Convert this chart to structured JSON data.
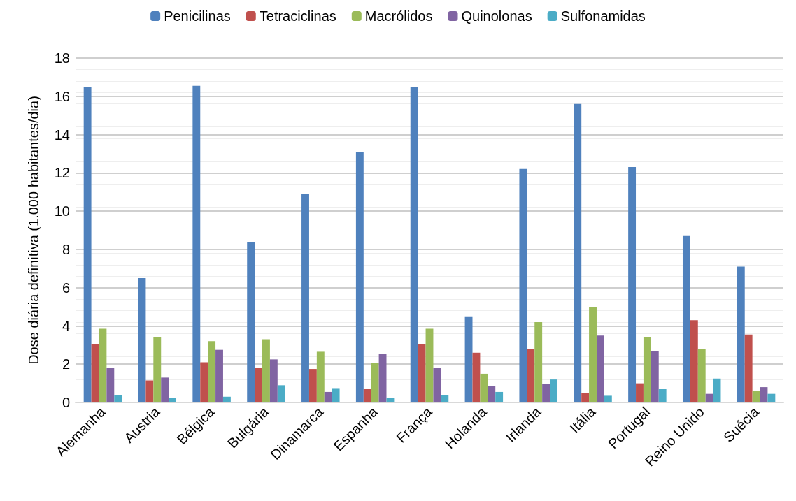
{
  "chart_data": {
    "type": "bar",
    "ylabel": "Dose diária definitiva (1.000 habitantes/dia)",
    "categories": [
      "Alemanha",
      "Austria",
      "Bélgica",
      "Bulgária",
      "Dinamarca",
      "Espanha",
      "França",
      "Holanda",
      "Irlanda",
      "Itália",
      "Portugal",
      "Reino Unido",
      "Suécia"
    ],
    "series": [
      {
        "name": "Penicilinas",
        "color": "#4f81bd",
        "values": [
          16.5,
          6.5,
          16.55,
          8.4,
          10.9,
          13.1,
          16.5,
          4.5,
          12.2,
          15.6,
          12.3,
          8.7,
          7.1
        ]
      },
      {
        "name": "Tetraciclinas",
        "color": "#c0504d",
        "values": [
          3.05,
          1.15,
          2.1,
          1.8,
          1.75,
          0.7,
          3.05,
          2.6,
          2.8,
          0.5,
          1.0,
          4.3,
          3.55
        ]
      },
      {
        "name": "Macrólidos",
        "color": "#9bbb59",
        "values": [
          3.85,
          3.4,
          3.2,
          3.3,
          2.65,
          2.05,
          3.85,
          1.5,
          4.2,
          5.0,
          3.4,
          2.8,
          0.6
        ]
      },
      {
        "name": "Quinolonas",
        "color": "#8064a2",
        "values": [
          1.8,
          1.3,
          2.75,
          2.25,
          0.55,
          2.55,
          1.8,
          0.85,
          0.95,
          3.5,
          2.7,
          0.45,
          0.8
        ]
      },
      {
        "name": "Sulfonamidas",
        "color": "#4bacc6",
        "values": [
          0.4,
          0.25,
          0.3,
          0.9,
          0.75,
          0.25,
          0.4,
          0.55,
          1.2,
          0.35,
          0.7,
          1.25,
          0.45
        ]
      }
    ],
    "ylim": [
      0,
      18
    ],
    "yticks": [
      0,
      2,
      4,
      6,
      8,
      10,
      12,
      14,
      16,
      18
    ],
    "grid": "y",
    "legend": "top"
  }
}
